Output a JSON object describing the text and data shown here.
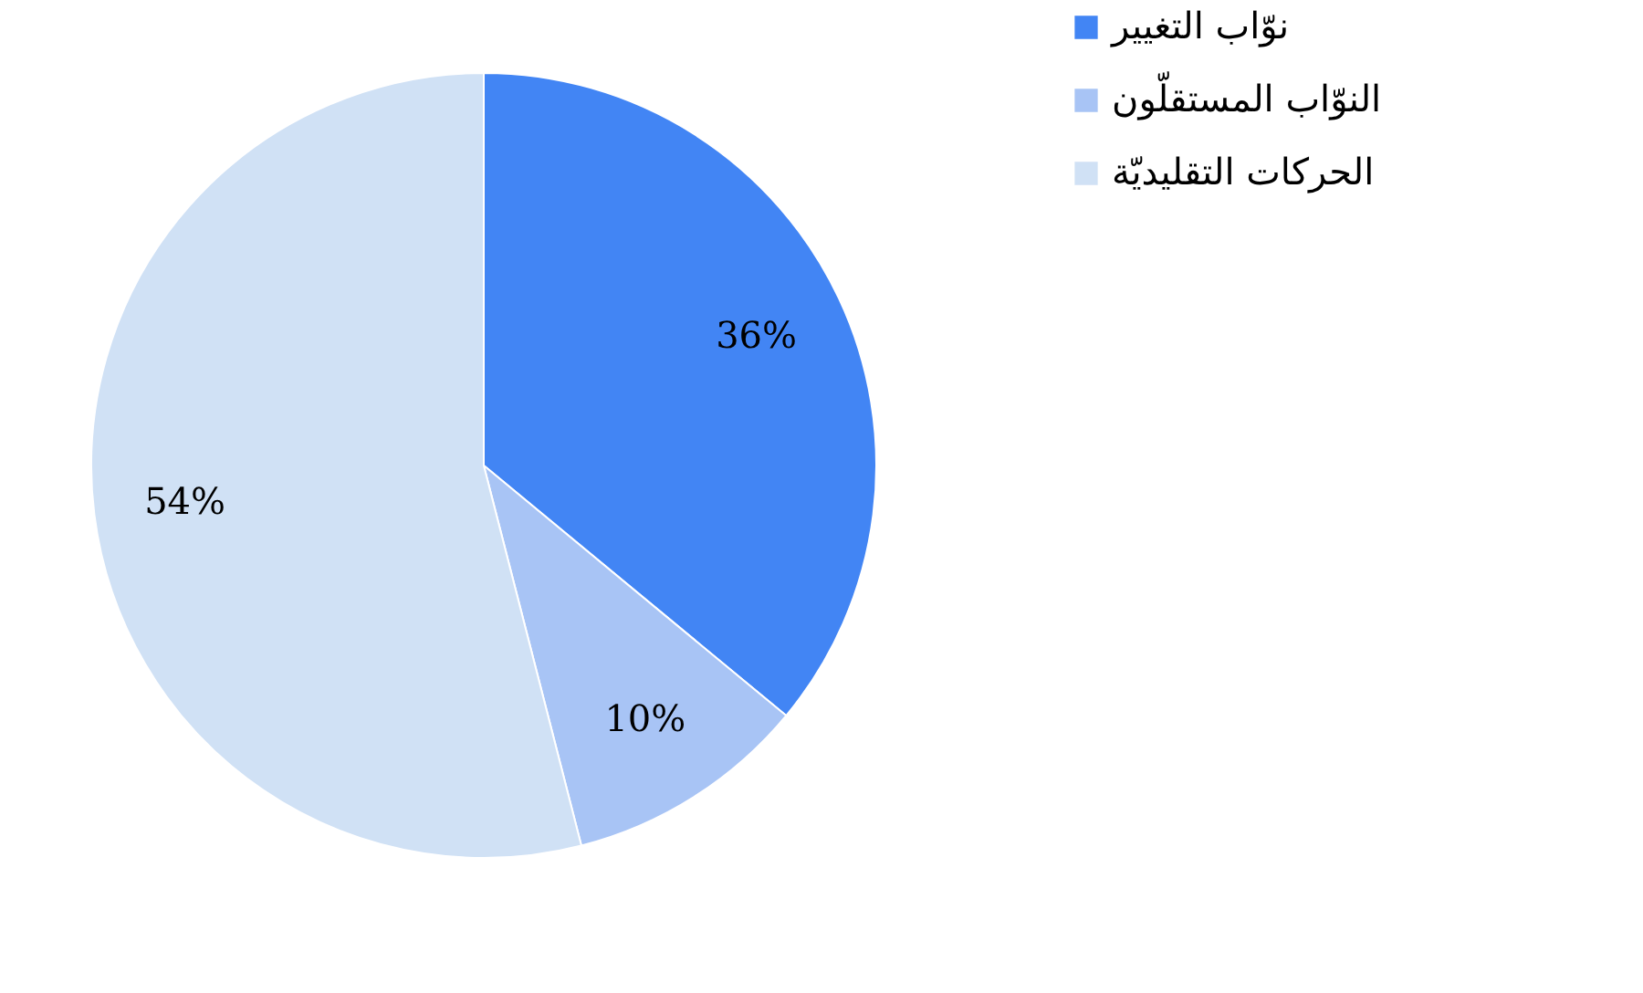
{
  "chart_data": {
    "type": "pie",
    "categories": [
      "نوّاب التغيير",
      "النوّاب المستقلّون",
      "الحركات التقليديّة"
    ],
    "values": [
      36,
      10,
      54
    ],
    "colors": [
      "#4285f4",
      "#a8c4f5",
      "#d0e1f5"
    ],
    "value_labels": [
      "36%",
      "10%",
      "54%"
    ],
    "legend": "right"
  }
}
